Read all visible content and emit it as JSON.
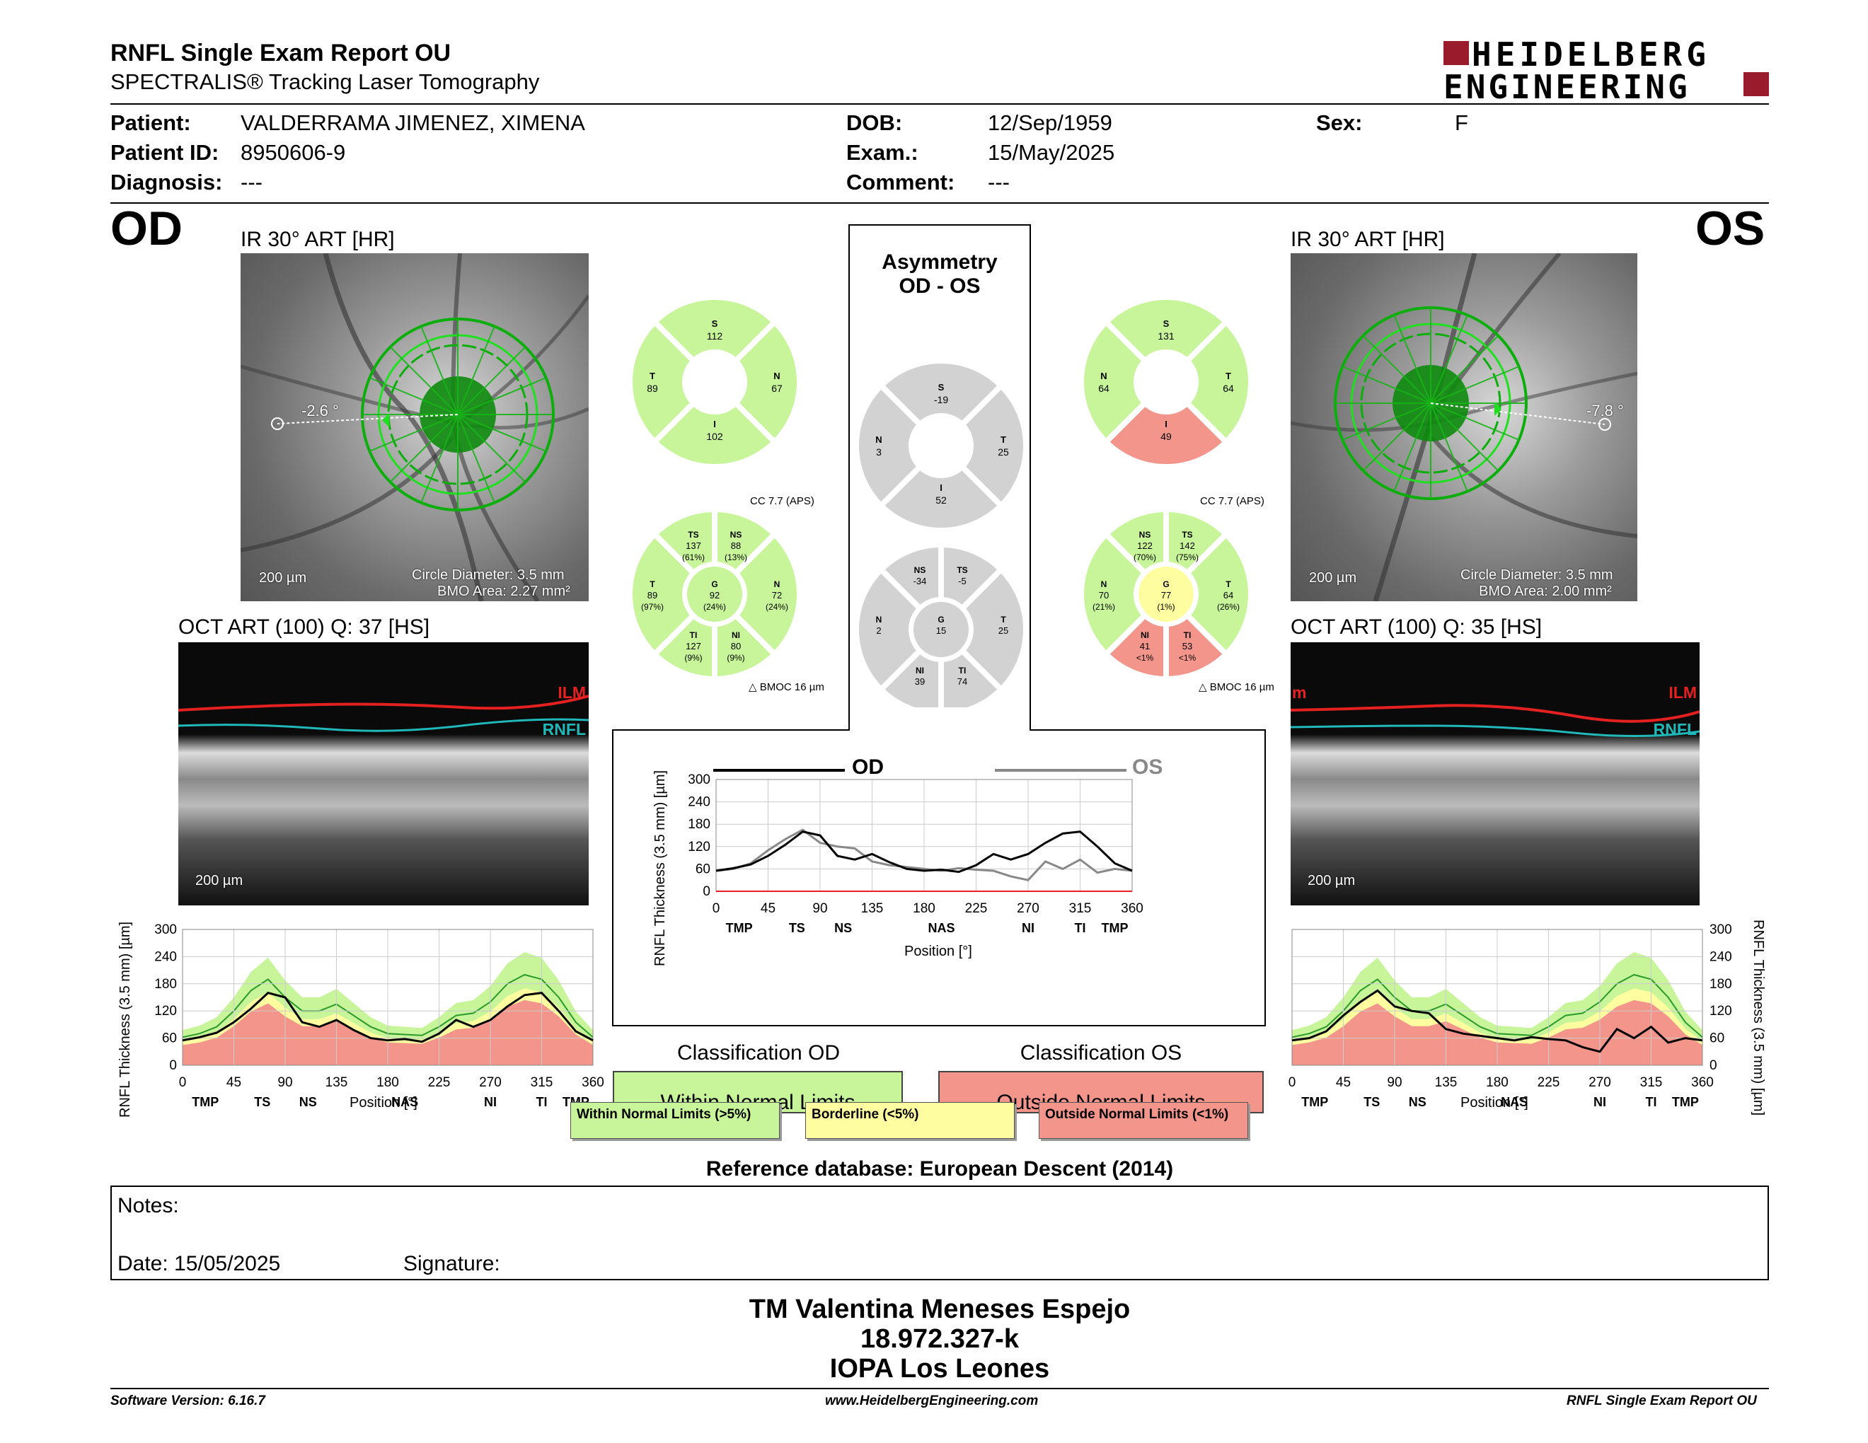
{
  "header": {
    "title": "RNFL Single Exam Report OU",
    "subtitle": "SPECTRALIS® Tracking Laser Tomography",
    "logo_line1": "HEIDELBERG",
    "logo_line2": "ENGINEERING"
  },
  "patient": {
    "patient_label": "Patient:",
    "patient_value": "VALDERRAMA JIMENEZ, XIMENA",
    "id_label": "Patient ID:",
    "id_value": "8950606-9",
    "diagnosis_label": "Diagnosis:",
    "diagnosis_value": "---",
    "dob_label": "DOB:",
    "dob_value": "12/Sep/1959",
    "exam_label": "Exam.:",
    "exam_value": "15/May/2025",
    "comment_label": "Comment:",
    "comment_value": "---",
    "sex_label": "Sex:",
    "sex_value": "F"
  },
  "od": {
    "eye": "OD",
    "ir_title": "IR 30° ART [HR]",
    "angle": "-2.6 °",
    "scale": "200 µm",
    "circle_diameter": "Circle Diameter: 3.5 mm",
    "bmo_area": "BMO Area: 2.27 mm²",
    "oct_title": "OCT ART (100) Q: 37 [HS]",
    "ilm": "ILM",
    "rnfl": "RNFL",
    "oct_scale": "200 µm",
    "classification_title": "Classification OD",
    "classification": "Within Normal Limits",
    "ring4": {
      "S": "S",
      "S_v": "112",
      "T": "T",
      "T_v": "89",
      "N": "N",
      "N_v": "67",
      "I": "I",
      "I_v": "102"
    },
    "ring6": {
      "TS": "TS",
      "TS_v": "137",
      "TS_p": "(61%)",
      "NS": "NS",
      "NS_v": "88",
      "NS_p": "(13%)",
      "T": "T",
      "T_v": "89",
      "T_p": "(97%)",
      "G": "G",
      "G_v": "92",
      "G_p": "(24%)",
      "N": "N",
      "N_v": "72",
      "N_p": "(24%)",
      "TI": "TI",
      "TI_v": "127",
      "TI_p": "(9%)",
      "NI": "NI",
      "NI_v": "80",
      "NI_p": "(9%)"
    },
    "cc": "CC 7.7 (APS)",
    "bmoc": "BMOC 16 µm"
  },
  "os": {
    "eye": "OS",
    "ir_title": "IR 30° ART [HR]",
    "angle": "-7.8 °",
    "scale": "200 µm",
    "circle_diameter": "Circle Diameter: 3.5 mm",
    "bmo_area": "BMO Area: 2.00 mm²",
    "oct_title": "OCT ART (100) Q: 35 [HS]",
    "ilm": "ILM",
    "ilm_left": "m",
    "rnfl": "RNFL",
    "oct_scale": "200 µm",
    "classification_title": "Classification OS",
    "classification": "Outside Normal Limits",
    "ring4": {
      "S": "S",
      "S_v": "131",
      "T": "T",
      "T_v": "64",
      "N": "N",
      "N_v": "64",
      "I": "I",
      "I_v": "49"
    },
    "ring6": {
      "TS": "TS",
      "TS_v": "142",
      "TS_p": "(75%)",
      "NS": "NS",
      "NS_v": "122",
      "NS_p": "(70%)",
      "T": "T",
      "T_v": "64",
      "T_p": "(26%)",
      "G": "G",
      "G_v": "77",
      "G_p": "(1%)",
      "N": "N",
      "N_v": "70",
      "N_p": "(21%)",
      "TI": "TI",
      "TI_v": "53",
      "TI_p": "<1%",
      "NI": "NI",
      "NI_v": "41",
      "NI_p": "<1%"
    },
    "cc": "CC 7.7 (APS)",
    "bmoc": "BMOC 16 µm"
  },
  "asym": {
    "title1": "Asymmetry",
    "title2": "OD - OS",
    "ring4": {
      "S": "S",
      "S_v": "-19",
      "N": "N",
      "N_v": "3",
      "T": "T",
      "T_v": "25",
      "I": "I",
      "I_v": "52"
    },
    "ring6": {
      "NS": "NS",
      "NS_v": "-34",
      "TS": "TS",
      "TS_v": "-5",
      "N": "N",
      "N_v": "2",
      "G": "G",
      "G_v": "15",
      "T": "T",
      "T_v": "25",
      "NI": "NI",
      "NI_v": "39",
      "TI": "TI",
      "TI_v": "74"
    },
    "legend_od": "OD",
    "legend_os": "OS"
  },
  "chart_common": {
    "ylabel": "RNFL Thickness (3.5 mm) [µm]",
    "xlabel": "Position [°]",
    "yticks": [
      "0",
      "60",
      "120",
      "180",
      "240",
      "300"
    ],
    "xticks": [
      "0",
      "45",
      "90",
      "135",
      "180",
      "225",
      "270",
      "315",
      "360"
    ],
    "regions": [
      "TMP",
      "TS",
      "NS",
      "NAS",
      "NI",
      "TI",
      "TMP"
    ]
  },
  "legend": {
    "within": "Within Normal Limits (>5%)",
    "borderline": "Borderline (<5%)",
    "outside": "Outside Normal Limits (<1%)"
  },
  "colors": {
    "within": "#c8f59a",
    "borderline": "#fefea0",
    "outside": "#f4958b",
    "gray": "#d2d2d2",
    "brand": "#9a1b2c"
  },
  "reference": "Reference database: European Descent (2014)",
  "notes": {
    "notes_label": "Notes:",
    "date_label": "Date: 15/05/2025",
    "signature_label": "Signature:"
  },
  "signature": {
    "name": "TM Valentina Meneses Espejo",
    "rut": "18.972.327-k",
    "clinic": "IOPA Los Leones"
  },
  "footer": {
    "version": "Software Version: 6.16.7",
    "website": "www.HeidelbergEngineering.com",
    "report": "RNFL Single Exam Report OU"
  },
  "chart_data": [
    {
      "type": "line",
      "title": "OD",
      "xlabel": "Position [°]",
      "ylabel": "RNFL Thickness (3.5 mm) [µm]",
      "xlim": [
        0,
        360
      ],
      "ylim": [
        0,
        300
      ],
      "x": [
        0,
        15,
        30,
        45,
        60,
        75,
        90,
        105,
        120,
        135,
        150,
        165,
        180,
        195,
        210,
        225,
        240,
        255,
        270,
        285,
        300,
        315,
        330,
        345,
        360
      ],
      "series": [
        {
          "name": "OD",
          "values": [
            55,
            62,
            72,
            95,
            125,
            160,
            150,
            95,
            85,
            100,
            78,
            60,
            55,
            58,
            52,
            70,
            100,
            85,
            100,
            130,
            155,
            160,
            120,
            75,
            55
          ]
        }
      ]
    },
    {
      "type": "line",
      "title": "OS",
      "xlabel": "Position [°]",
      "ylabel": "RNFL Thickness (3.5 mm) [µm]",
      "xlim": [
        0,
        360
      ],
      "ylim": [
        0,
        300
      ],
      "x": [
        0,
        15,
        30,
        45,
        60,
        75,
        90,
        105,
        120,
        135,
        150,
        165,
        180,
        195,
        210,
        225,
        240,
        255,
        270,
        285,
        300,
        315,
        330,
        345,
        360
      ],
      "series": [
        {
          "name": "OS",
          "values": [
            55,
            60,
            75,
            110,
            140,
            165,
            130,
            120,
            115,
            80,
            70,
            65,
            60,
            55,
            62,
            58,
            55,
            40,
            30,
            80,
            60,
            85,
            50,
            60,
            55
          ]
        }
      ]
    },
    {
      "type": "line",
      "title": "",
      "xlabel": "Position [°]",
      "ylabel": "RNFL Thickness (3.5 mm) [µm]",
      "xlim": [
        0,
        360
      ],
      "ylim": [
        0,
        300
      ],
      "x": [
        0,
        15,
        30,
        45,
        60,
        75,
        90,
        105,
        120,
        135,
        150,
        165,
        180,
        195,
        210,
        225,
        240,
        255,
        270,
        285,
        300,
        315,
        330,
        345,
        360
      ],
      "series": [
        {
          "name": "OD",
          "values": [
            55,
            62,
            72,
            95,
            125,
            160,
            150,
            95,
            85,
            100,
            78,
            60,
            55,
            58,
            52,
            70,
            100,
            85,
            100,
            130,
            155,
            160,
            120,
            75,
            55
          ]
        },
        {
          "name": "OS",
          "values": [
            55,
            60,
            75,
            110,
            140,
            165,
            130,
            120,
            115,
            80,
            70,
            65,
            60,
            55,
            62,
            58,
            55,
            40,
            30,
            80,
            60,
            85,
            50,
            60,
            55
          ]
        }
      ]
    }
  ]
}
